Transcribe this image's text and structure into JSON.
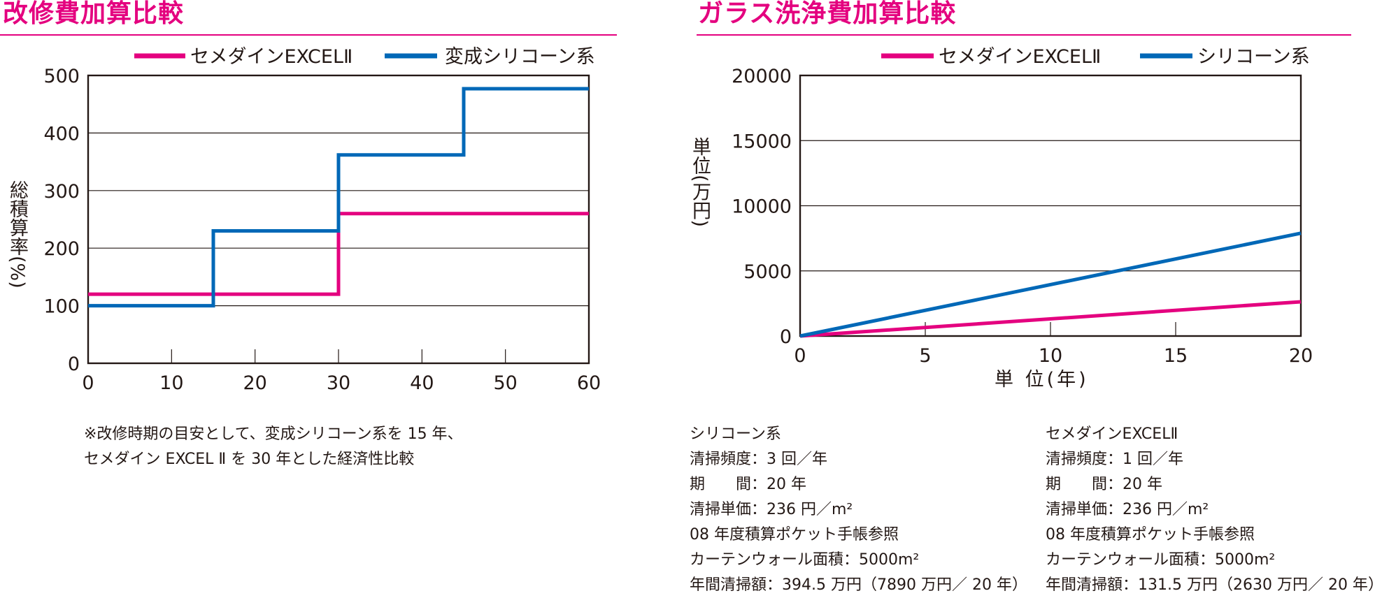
{
  "colors": {
    "accent": "#e4007f",
    "excel": "#e4007f",
    "silicone": "#0068b7",
    "axis": "#231815"
  },
  "left": {
    "title": "改修費加算比較",
    "ylabel": "総積算率(%)",
    "note": [
      "※改修時期の目安として、変成シリコーン系を 15 年、",
      "セメダイン EXCEL Ⅱ を 30 年とした経済性比較"
    ]
  },
  "right": {
    "title": "ガラス洗浄費加算比較",
    "ylabel": "単位(万円)",
    "xlabel": "単 位(年)",
    "silicone_info": {
      "name": "シリコーン系",
      "lines": [
        "清掃頻度：3 回／年",
        "期　　間：20 年",
        "清掃単価：236 円／m²",
        "08 年度積算ポケット手帳参照",
        "カーテンウォール面積：5000m²",
        "年間清掃額：394.5 万円（7890 万円／ 20 年）"
      ]
    },
    "excel_info": {
      "name": "セメダインEXCELⅡ",
      "lines": [
        "清掃頻度：1 回／年",
        "期　　間：20 年",
        "清掃単価：236 円／m²",
        "08 年度積算ポケット手帳参照",
        "カーテンウォール面積：5000m²",
        "年間清掃額：131.5 万円（2630 万円／ 20 年）"
      ]
    }
  },
  "chart_data": [
    {
      "type": "line",
      "step": true,
      "title": "改修費加算比較",
      "ylabel": "総積算率(%)",
      "xlabel": "",
      "xlim": [
        0,
        60
      ],
      "ylim": [
        0,
        500
      ],
      "xticks": [
        0,
        10,
        20,
        30,
        40,
        50,
        60
      ],
      "yticks": [
        0,
        100,
        200,
        300,
        400,
        500
      ],
      "grid": true,
      "legend_position": "top",
      "series": [
        {
          "name": "セメダインEXCELⅡ",
          "color": "#e4007f",
          "x": [
            0,
            30,
            30,
            60
          ],
          "y": [
            120,
            120,
            260,
            260
          ]
        },
        {
          "name": "変成シリコーン系",
          "color": "#0068b7",
          "x": [
            0,
            15,
            15,
            30,
            30,
            45,
            45,
            60
          ],
          "y": [
            100,
            100,
            230,
            230,
            362,
            362,
            477,
            477
          ]
        }
      ]
    },
    {
      "type": "line",
      "title": "ガラス洗浄費加算比較",
      "ylabel": "単位(万円)",
      "xlabel": "単 位(年)",
      "xlim": [
        0,
        20
      ],
      "ylim": [
        0,
        20000
      ],
      "xticks": [
        0,
        5,
        10,
        15,
        20
      ],
      "yticks": [
        0,
        5000,
        10000,
        15000,
        20000
      ],
      "grid": true,
      "legend_position": "top",
      "series": [
        {
          "name": "セメダインEXCELⅡ",
          "color": "#e4007f",
          "x": [
            0,
            20
          ],
          "y": [
            0,
            2630
          ]
        },
        {
          "name": "シリコーン系",
          "color": "#0068b7",
          "x": [
            0,
            20
          ],
          "y": [
            0,
            7890
          ]
        }
      ]
    }
  ]
}
